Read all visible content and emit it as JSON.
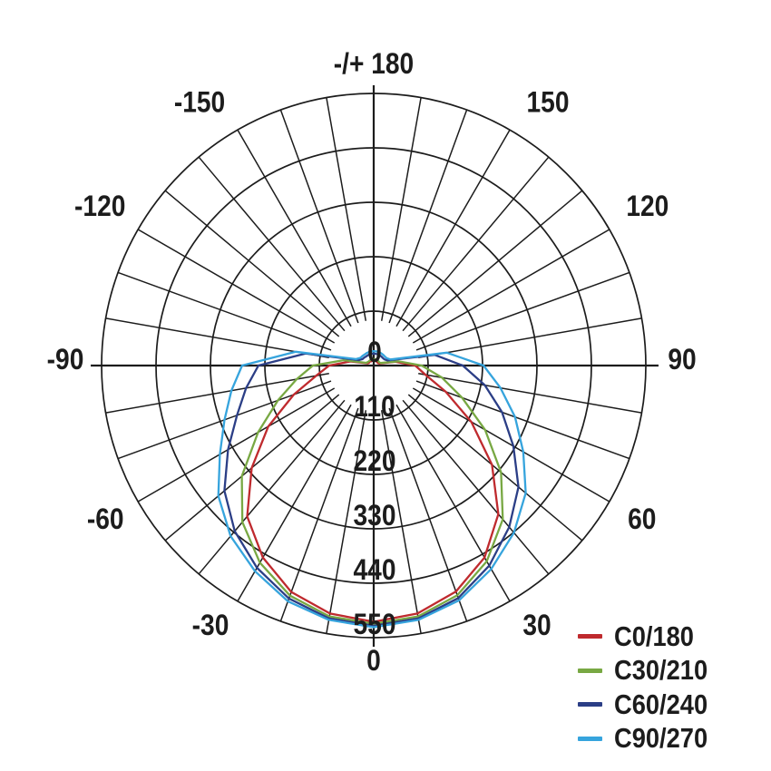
{
  "chart_data": {
    "type": "line",
    "subtype": "polar-photometric",
    "title": "",
    "angle_unit": "deg",
    "angle_zero_direction": "bottom",
    "grid": {
      "angle_step_deg": 10,
      "color": "#1c1c1c",
      "rings": 5
    },
    "radial_ticks": [
      "0",
      "110",
      "220",
      "330",
      "440",
      "550"
    ],
    "radial_max": 550,
    "angle_tick_labels": [
      {
        "angle": 180,
        "label": "-/+ 180"
      },
      {
        "angle": -150,
        "label": "-150"
      },
      {
        "angle": 150,
        "label": "150"
      },
      {
        "angle": -120,
        "label": "-120"
      },
      {
        "angle": 120,
        "label": "120"
      },
      {
        "angle": -90,
        "label": "-90"
      },
      {
        "angle": 90,
        "label": "90"
      },
      {
        "angle": -60,
        "label": "-60"
      },
      {
        "angle": 60,
        "label": "60"
      },
      {
        "angle": -30,
        "label": "-30"
      },
      {
        "angle": 30,
        "label": "30"
      },
      {
        "angle": 0,
        "label": "0"
      }
    ],
    "angles_deg": [
      -180,
      -170,
      -160,
      -150,
      -140,
      -130,
      -120,
      -110,
      -100,
      -90,
      -80,
      -70,
      -60,
      -50,
      -40,
      -30,
      -20,
      -10,
      0,
      10,
      20,
      30,
      40,
      50,
      60,
      70,
      80,
      90,
      100,
      110,
      120,
      130,
      140,
      150,
      160,
      170,
      180
    ],
    "series": [
      {
        "name": "C0/180",
        "color": "#bf2a2e",
        "values": [
          10,
          10,
          10,
          10,
          11,
          11,
          11,
          13,
          48,
          90,
          118,
          172,
          246,
          322,
          398,
          448,
          487,
          509,
          518,
          509,
          486,
          448,
          392,
          312,
          228,
          155,
          106,
          84,
          44,
          12,
          10,
          10,
          10,
          10,
          10,
          10,
          10
        ]
      },
      {
        "name": "C30/210",
        "color": "#78a843",
        "values": [
          13,
          13,
          13,
          13,
          13,
          13,
          14,
          16,
          62,
          123,
          158,
          206,
          270,
          348,
          413,
          460,
          495,
          515,
          522,
          515,
          494,
          457,
          406,
          336,
          260,
          190,
          140,
          97,
          50,
          15,
          13,
          13,
          13,
          13,
          13,
          13,
          13
        ]
      },
      {
        "name": "C60/240",
        "color": "#2b3e86",
        "values": [
          24,
          24,
          24,
          24,
          24,
          25,
          26,
          32,
          140,
          233,
          262,
          294,
          340,
          394,
          437,
          472,
          501,
          519,
          526,
          519,
          500,
          467,
          426,
          382,
          326,
          276,
          228,
          180,
          125,
          30,
          25,
          24,
          24,
          24,
          24,
          24,
          24
        ]
      },
      {
        "name": "C90/270",
        "color": "#36a4dd",
        "values": [
          29,
          29,
          29,
          29,
          29,
          30,
          31,
          38,
          160,
          266,
          292,
          321,
          359,
          410,
          450,
          480,
          507,
          522,
          529,
          522,
          505,
          475,
          441,
          401,
          349,
          304,
          260,
          222,
          150,
          36,
          30,
          29,
          29,
          29,
          29,
          29,
          29
        ]
      }
    ],
    "legend_position": "bottom-right"
  }
}
